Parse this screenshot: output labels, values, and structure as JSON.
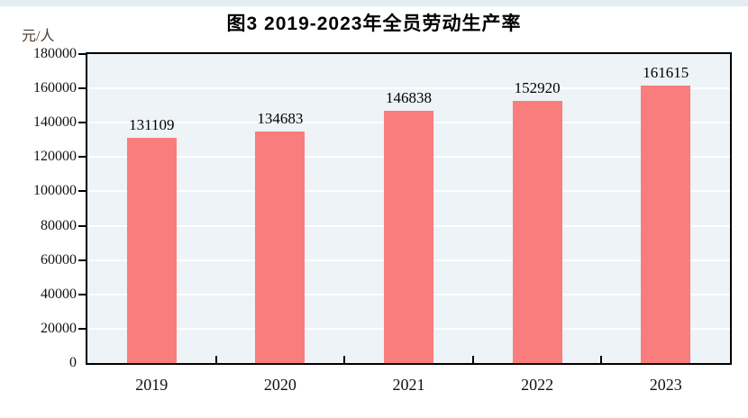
{
  "page": {
    "top_strip_color": "#e2edf4"
  },
  "chart_data": {
    "type": "bar",
    "title": "图3  2019-2023年全员劳动生产率",
    "unit_label": "元/人",
    "categories": [
      "2019",
      "2020",
      "2021",
      "2022",
      "2023"
    ],
    "values": [
      131109,
      134683,
      146838,
      152920,
      161615
    ],
    "value_labels": [
      "131109",
      "134683",
      "146838",
      "152920",
      "161615"
    ],
    "xlabel": "",
    "ylabel": "元/人",
    "ylim": [
      0,
      180000
    ],
    "ytick_step": 20000,
    "ytick_labels": [
      "0",
      "20000",
      "40000",
      "60000",
      "80000",
      "100000",
      "120000",
      "140000",
      "160000",
      "180000"
    ],
    "grid": true,
    "legend": "none",
    "colors": {
      "bar": "#f97d7c",
      "plot_background": "#edf3f7",
      "gridline": "#ffffff",
      "axis": "#000000",
      "text": "#000000"
    }
  }
}
